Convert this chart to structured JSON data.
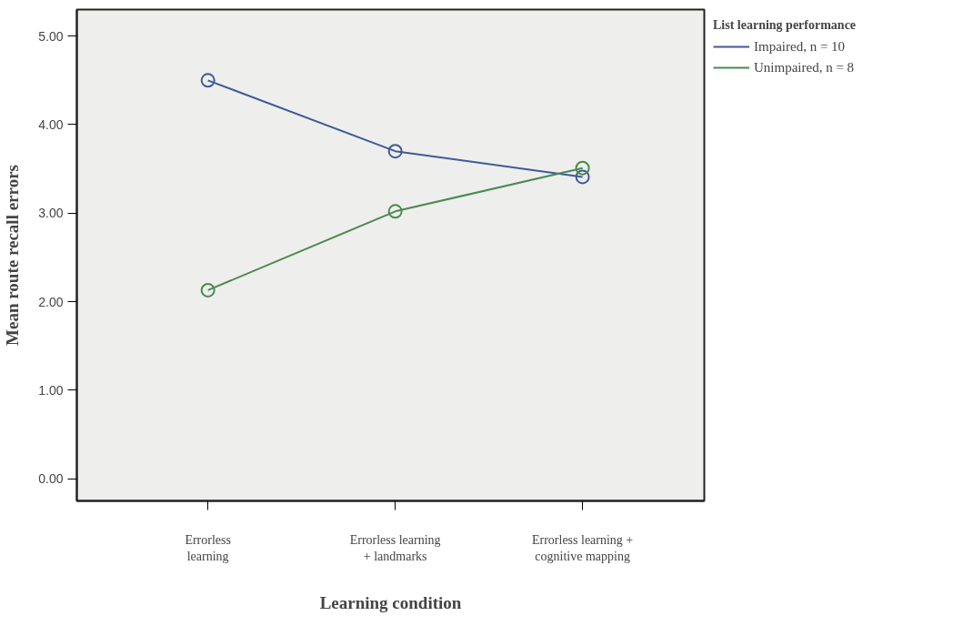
{
  "chart_data": {
    "type": "line",
    "xlabel": "Learning condition",
    "ylabel": "Mean route recall errors",
    "legend_title": "List learning performance",
    "categories": [
      "Errorless\nlearning",
      "Errorless learning\n+ landmarks",
      "Errorless learning +\ncognitive mapping"
    ],
    "series": [
      {
        "name": "Impaired, n = 10",
        "color": "#3f5a9a",
        "values": [
          4.5,
          3.7,
          3.41
        ]
      },
      {
        "name": "Unimpaired, n = 8",
        "color": "#4a8a4f",
        "values": [
          2.13,
          3.02,
          3.51
        ]
      }
    ],
    "ylim": [
      -0.25,
      5.3
    ],
    "yticks": [
      {
        "value": 0,
        "label": "0.00"
      },
      {
        "value": 1,
        "label": "1.00"
      },
      {
        "value": 2,
        "label": "2.00"
      },
      {
        "value": 3,
        "label": "3.00"
      },
      {
        "value": 4,
        "label": "4.00"
      },
      {
        "value": 5,
        "label": "5.00"
      }
    ],
    "marker": "circle",
    "line_style": "solid",
    "grid": false,
    "legend": "top right"
  }
}
